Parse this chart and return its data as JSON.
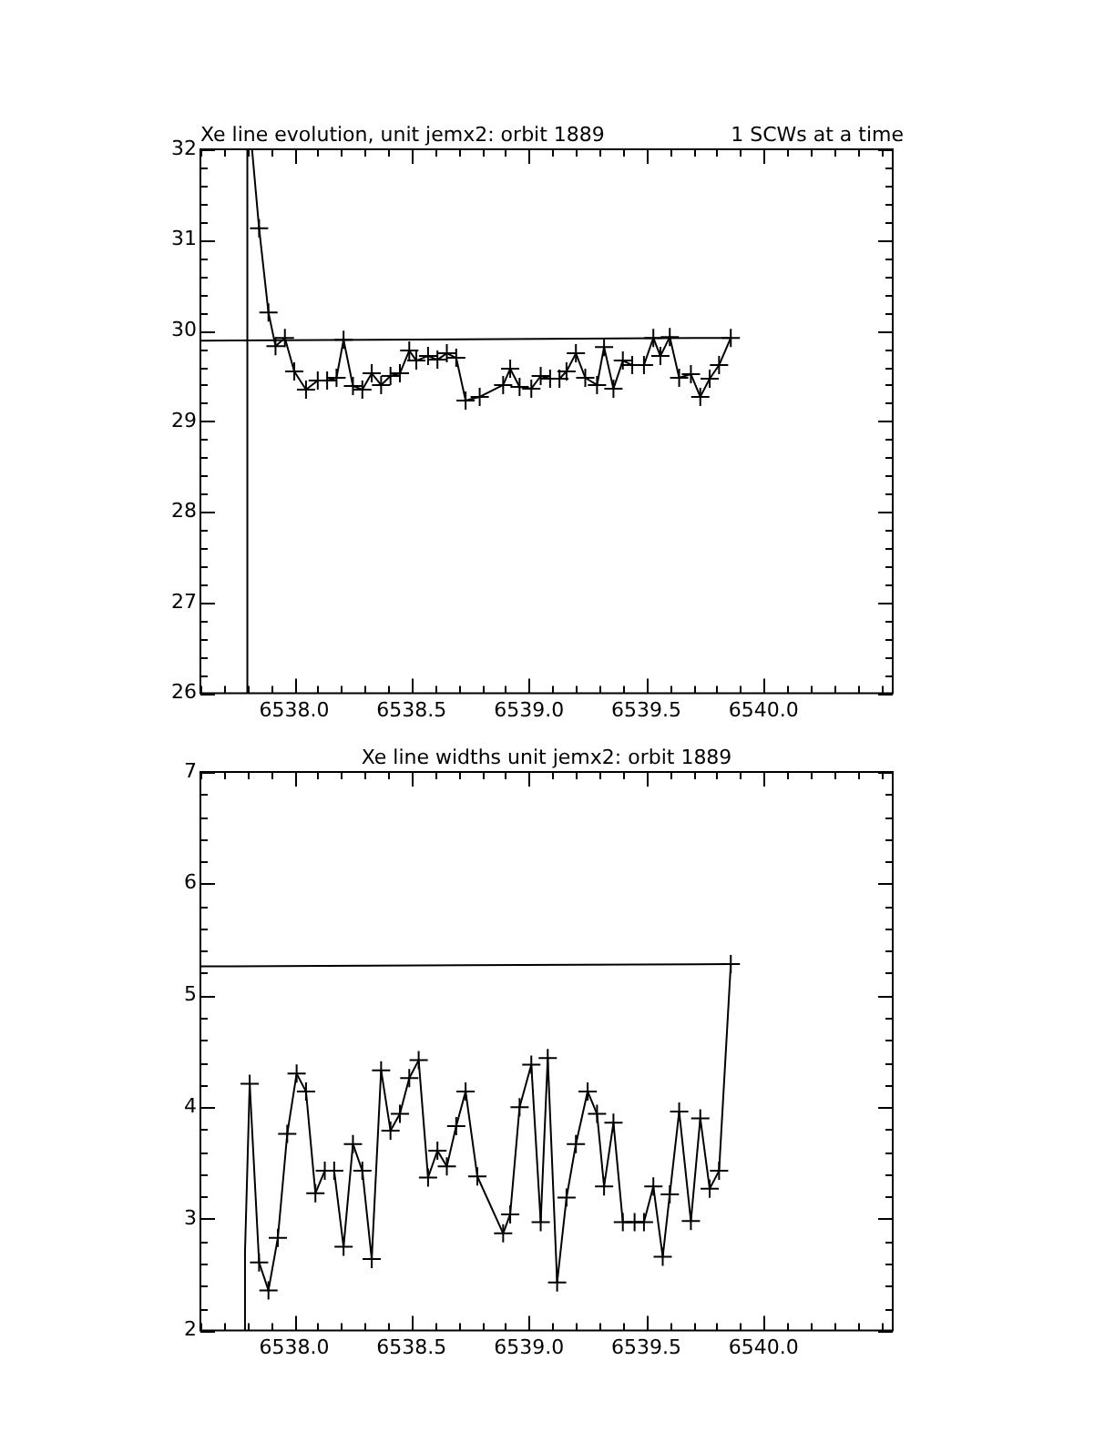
{
  "chart_data": [
    {
      "type": "line",
      "title": "Xe line evolution, unit jemx2: orbit 1889",
      "annotations": [
        "1 SCWs at a time"
      ],
      "xlim": [
        6537.6,
        6540.55
      ],
      "ylim": [
        26,
        32
      ],
      "xticks": [
        {
          "value": 6537.6,
          "label": null
        },
        {
          "value": 6537.7,
          "label": null
        },
        {
          "value": 6537.8,
          "label": null
        },
        {
          "value": 6537.9,
          "label": null
        },
        {
          "value": 6538,
          "label": "6538.0"
        },
        {
          "value": 6538.1,
          "label": null
        },
        {
          "value": 6538.2,
          "label": null
        },
        {
          "value": 6538.3,
          "label": null
        },
        {
          "value": 6538.4,
          "label": null
        },
        {
          "value": 6538.5,
          "label": "6538.5"
        },
        {
          "value": 6538.6,
          "label": null
        },
        {
          "value": 6538.7,
          "label": null
        },
        {
          "value": 6538.8,
          "label": null
        },
        {
          "value": 6538.9,
          "label": null
        },
        {
          "value": 6539,
          "label": "6539.0"
        },
        {
          "value": 6539.1,
          "label": null
        },
        {
          "value": 6539.2,
          "label": null
        },
        {
          "value": 6539.3,
          "label": null
        },
        {
          "value": 6539.4,
          "label": null
        },
        {
          "value": 6539.5,
          "label": "6539.5"
        },
        {
          "value": 6539.6,
          "label": null
        },
        {
          "value": 6539.7,
          "label": null
        },
        {
          "value": 6539.8,
          "label": null
        },
        {
          "value": 6539.9,
          "label": null
        },
        {
          "value": 6540,
          "label": "6540.0"
        },
        {
          "value": 6540.1,
          "label": null
        },
        {
          "value": 6540.2,
          "label": null
        },
        {
          "value": 6540.3,
          "label": null
        },
        {
          "value": 6540.4,
          "label": null
        },
        {
          "value": 6540.5,
          "label": null
        }
      ],
      "yticks": [
        26,
        {
          "value": 26.2,
          "label": null
        },
        {
          "value": 26.4,
          "label": null
        },
        {
          "value": 26.6,
          "label": null
        },
        {
          "value": 26.8,
          "label": null
        },
        27,
        {
          "value": 27.2,
          "label": null
        },
        {
          "value": 27.4,
          "label": null
        },
        {
          "value": 27.6,
          "label": null
        },
        {
          "value": 27.8,
          "label": null
        },
        28,
        {
          "value": 28.2,
          "label": null
        },
        {
          "value": 28.4,
          "label": null
        },
        {
          "value": 28.6,
          "label": null
        },
        {
          "value": 28.8,
          "label": null
        },
        29,
        {
          "value": 29.2,
          "label": null
        },
        {
          "value": 29.4,
          "label": null
        },
        {
          "value": 29.6,
          "label": null
        },
        {
          "value": 29.8,
          "label": null
        },
        30,
        {
          "value": 30.2,
          "label": null
        },
        {
          "value": 30.4,
          "label": null
        },
        {
          "value": 30.6,
          "label": null
        },
        {
          "value": 30.8,
          "label": null
        },
        31,
        {
          "value": 31.2,
          "label": null
        },
        {
          "value": 31.4,
          "label": null
        },
        {
          "value": 31.6,
          "label": null
        },
        {
          "value": 31.8,
          "label": null
        },
        32
      ],
      "series": [
        {
          "color": "#000000",
          "x": [
            6537.6,
            6539.86
          ],
          "values": [
            29.89,
            29.92
          ]
        },
        {
          "color": "#000000",
          "x": [
            6537.8,
            6537.8,
            6537.82,
            6537.85
          ],
          "values": [
            26,
            32,
            32,
            31.13
          ]
        },
        {
          "color": "#000000",
          "marker": "cross",
          "x": [
            6537.85,
            6537.89,
            6537.92,
            6537.96,
            6538.0,
            6538.05,
            6538.1,
            6538.14,
            6538.18,
            6538.21,
            6538.25,
            6538.29,
            6538.33,
            6538.37,
            6538.41,
            6538.45,
            6538.49,
            6538.52,
            6538.57,
            6538.61,
            6538.65,
            6538.69,
            6538.73,
            6538.79,
            6538.89,
            6538.92,
            6538.96,
            6539.01,
            6539.05,
            6539.09,
            6539.13,
            6539.16,
            6539.2,
            6539.24,
            6539.29,
            6539.32,
            6539.36,
            6539.4,
            6539.44,
            6539.49,
            6539.53,
            6539.56,
            6539.6,
            6539.64,
            6539.69,
            6539.73,
            6539.77,
            6539.81,
            6539.86
          ],
          "values": [
            31.13,
            30.2,
            29.83,
            29.92,
            29.55,
            29.35,
            29.45,
            29.45,
            29.48,
            29.9,
            29.39,
            29.35,
            29.53,
            29.4,
            29.5,
            29.53,
            29.78,
            29.67,
            29.72,
            29.68,
            29.75,
            29.7,
            29.23,
            29.27,
            29.4,
            29.58,
            29.38,
            29.36,
            29.5,
            29.47,
            29.47,
            29.55,
            29.75,
            29.48,
            29.4,
            29.82,
            29.36,
            29.67,
            29.62,
            29.62,
            29.92,
            29.72,
            29.93,
            29.48,
            29.52,
            29.27,
            29.47,
            29.62,
            29.92
          ]
        }
      ]
    },
    {
      "type": "line",
      "title": "Xe line widths unit jemx2: orbit 1889",
      "xlim": [
        6537.6,
        6540.55
      ],
      "ylim": [
        2,
        7
      ],
      "xticks": [
        {
          "value": 6537.6,
          "label": null
        },
        {
          "value": 6537.7,
          "label": null
        },
        {
          "value": 6537.8,
          "label": null
        },
        {
          "value": 6537.9,
          "label": null
        },
        {
          "value": 6538,
          "label": "6538.0"
        },
        {
          "value": 6538.1,
          "label": null
        },
        {
          "value": 6538.2,
          "label": null
        },
        {
          "value": 6538.3,
          "label": null
        },
        {
          "value": 6538.4,
          "label": null
        },
        {
          "value": 6538.5,
          "label": "6538.5"
        },
        {
          "value": 6538.6,
          "label": null
        },
        {
          "value": 6538.7,
          "label": null
        },
        {
          "value": 6538.8,
          "label": null
        },
        {
          "value": 6538.9,
          "label": null
        },
        {
          "value": 6539,
          "label": "6539.0"
        },
        {
          "value": 6539.1,
          "label": null
        },
        {
          "value": 6539.2,
          "label": null
        },
        {
          "value": 6539.3,
          "label": null
        },
        {
          "value": 6539.4,
          "label": null
        },
        {
          "value": 6539.5,
          "label": "6539.5"
        },
        {
          "value": 6539.6,
          "label": null
        },
        {
          "value": 6539.7,
          "label": null
        },
        {
          "value": 6539.8,
          "label": null
        },
        {
          "value": 6539.9,
          "label": null
        },
        {
          "value": 6540,
          "label": "6540.0"
        },
        {
          "value": 6540.1,
          "label": null
        },
        {
          "value": 6540.2,
          "label": null
        },
        {
          "value": 6540.3,
          "label": null
        },
        {
          "value": 6540.4,
          "label": null
        },
        {
          "value": 6540.5,
          "label": null
        }
      ],
      "yticks": [
        2,
        {
          "value": 2.2,
          "label": null
        },
        {
          "value": 2.4,
          "label": null
        },
        {
          "value": 2.6,
          "label": null
        },
        {
          "value": 2.8,
          "label": null
        },
        3,
        {
          "value": 3.2,
          "label": null
        },
        {
          "value": 3.4,
          "label": null
        },
        {
          "value": 3.6,
          "label": null
        },
        {
          "value": 3.8,
          "label": null
        },
        4,
        {
          "value": 4.2,
          "label": null
        },
        {
          "value": 4.4,
          "label": null
        },
        {
          "value": 4.6,
          "label": null
        },
        {
          "value": 4.8,
          "label": null
        },
        5,
        {
          "value": 5.2,
          "label": null
        },
        {
          "value": 5.4,
          "label": null
        },
        {
          "value": 5.6,
          "label": null
        },
        {
          "value": 5.8,
          "label": null
        },
        6,
        {
          "value": 6.2,
          "label": null
        },
        {
          "value": 6.4,
          "label": null
        },
        {
          "value": 6.6,
          "label": null
        },
        {
          "value": 6.8,
          "label": null
        },
        7
      ],
      "series": [
        {
          "color": "#000000",
          "x": [
            6537.6,
            6539.86
          ],
          "values": [
            5.26,
            5.28
          ]
        },
        {
          "color": "#000000",
          "x": [
            6537.79,
            6537.79,
            6537.81
          ],
          "values": [
            2,
            2.7,
            4.21
          ]
        },
        {
          "color": "#000000",
          "marker": "cross",
          "x": [
            6537.81,
            6537.85,
            6537.89,
            6537.93,
            6537.97,
            6538.01,
            6538.05,
            6538.09,
            6538.13,
            6538.17,
            6538.21,
            6538.25,
            6538.29,
            6538.33,
            6538.37,
            6538.41,
            6538.45,
            6538.49,
            6538.53,
            6538.57,
            6538.61,
            6538.65,
            6538.69,
            6538.73,
            6538.78,
            6538.89,
            6538.92,
            6538.96,
            6539.01,
            6539.05,
            6539.08,
            6539.12,
            6539.16,
            6539.2,
            6539.25,
            6539.29,
            6539.32,
            6539.36,
            6539.4,
            6539.45,
            6539.49,
            6539.53,
            6539.57,
            6539.6,
            6539.64,
            6539.69,
            6539.73,
            6539.77,
            6539.81,
            6539.86
          ],
          "values": [
            4.21,
            2.61,
            2.36,
            2.83,
            3.76,
            4.3,
            4.14,
            3.23,
            3.43,
            3.43,
            2.75,
            3.67,
            3.43,
            2.64,
            4.33,
            3.79,
            3.94,
            4.26,
            4.42,
            3.37,
            3.61,
            3.47,
            3.83,
            4.14,
            3.38,
            2.87,
            3.04,
            4.0,
            4.38,
            2.97,
            4.44,
            2.43,
            3.19,
            3.67,
            4.14,
            3.94,
            3.29,
            3.86,
            2.97,
            2.97,
            2.97,
            3.29,
            2.66,
            3.22,
            3.96,
            2.98,
            3.9,
            3.27,
            3.43,
            5.28
          ]
        }
      ]
    }
  ]
}
